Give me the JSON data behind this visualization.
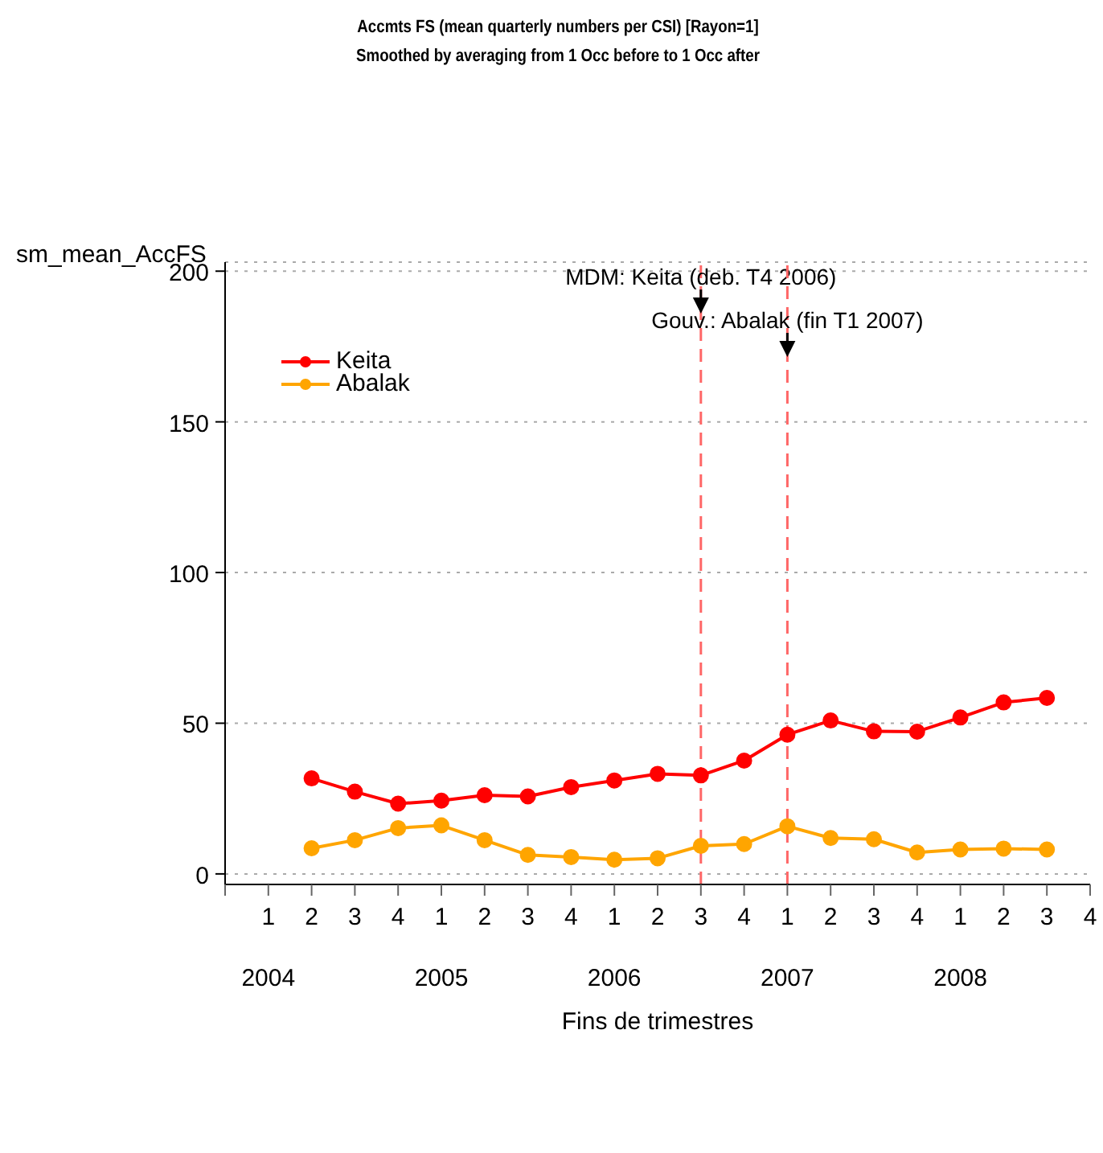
{
  "chart_data": {
    "type": "line",
    "title": "Accmts FS (mean quarterly numbers per CSI) [Rayon=1]",
    "subtitle": "Smoothed by averaging from 1 Occ before to 1 Occ after",
    "ylabel": "sm_mean_AccFS",
    "xlabel": "Fins de trimestres",
    "x": [
      "2004-06",
      "2004-09",
      "2004-12",
      "2005-03",
      "2005-06",
      "2005-09",
      "2005-12",
      "2006-03",
      "2006-06",
      "2006-09",
      "2006-12",
      "2007-03",
      "2007-06",
      "2007-09",
      "2007-12",
      "2008-03",
      "2008-06",
      "2008-09"
    ],
    "series": [
      {
        "name": "Keita",
        "color": "#ff0000",
        "values": [
          31.7,
          27.3,
          23.3,
          24.3,
          26.1,
          25.7,
          28.8,
          31.0,
          33.2,
          32.7,
          37.6,
          46.2,
          50.9,
          47.3,
          47.2,
          51.9,
          56.9,
          58.4
        ]
      },
      {
        "name": "Abalak",
        "color": "#ffa500",
        "values": [
          8.5,
          11.2,
          15.2,
          16.1,
          11.2,
          6.3,
          5.6,
          4.7,
          5.2,
          9.3,
          9.9,
          15.8,
          11.9,
          11.5,
          7.1,
          8.1,
          8.4,
          8.1
        ]
      }
    ],
    "xlim": [
      "2003-12",
      "2008-12"
    ],
    "xticks": [
      {
        "value": "2003-12",
        "label": null
      },
      {
        "value": "2004-03",
        "label": "1"
      },
      {
        "value": "2004-06",
        "label": "2"
      },
      {
        "value": "2004-09",
        "label": "3"
      },
      {
        "value": "2004-12",
        "label": "4"
      },
      {
        "value": "2005-03",
        "label": "1"
      },
      {
        "value": "2005-06",
        "label": "2"
      },
      {
        "value": "2005-09",
        "label": "3"
      },
      {
        "value": "2005-12",
        "label": "4"
      },
      {
        "value": "2006-03",
        "label": "1"
      },
      {
        "value": "2006-06",
        "label": "2"
      },
      {
        "value": "2006-09",
        "label": "3"
      },
      {
        "value": "2006-12",
        "label": "4"
      },
      {
        "value": "2007-03",
        "label": "1"
      },
      {
        "value": "2007-06",
        "label": "2"
      },
      {
        "value": "2007-09",
        "label": "3"
      },
      {
        "value": "2007-12",
        "label": "4"
      },
      {
        "value": "2008-03",
        "label": "1"
      },
      {
        "value": "2008-06",
        "label": "2"
      },
      {
        "value": "2008-09",
        "label": "3"
      },
      {
        "value": "2008-12",
        "label": "4"
      }
    ],
    "ylim": [
      -3.5,
      203
    ],
    "yticks": [
      0,
      50,
      100,
      150,
      200
    ],
    "ref_lines": [
      {
        "axis": "x",
        "value": "2006-09",
        "label": "MDM: Keita (deb. T4 2006)",
        "color": "#ff6666",
        "line_style": "dashed"
      },
      {
        "axis": "x",
        "value": "2007-03",
        "label": "Gouv.: Abalak (fin T1 2007)",
        "color": "#ff6666",
        "line_style": "dashed"
      }
    ],
    "annotations": [
      "2004",
      "2005",
      "2006",
      "2007",
      "2008"
    ],
    "grid": "y",
    "legend": "top left",
    "marker": "circle",
    "line_style": "solid"
  }
}
